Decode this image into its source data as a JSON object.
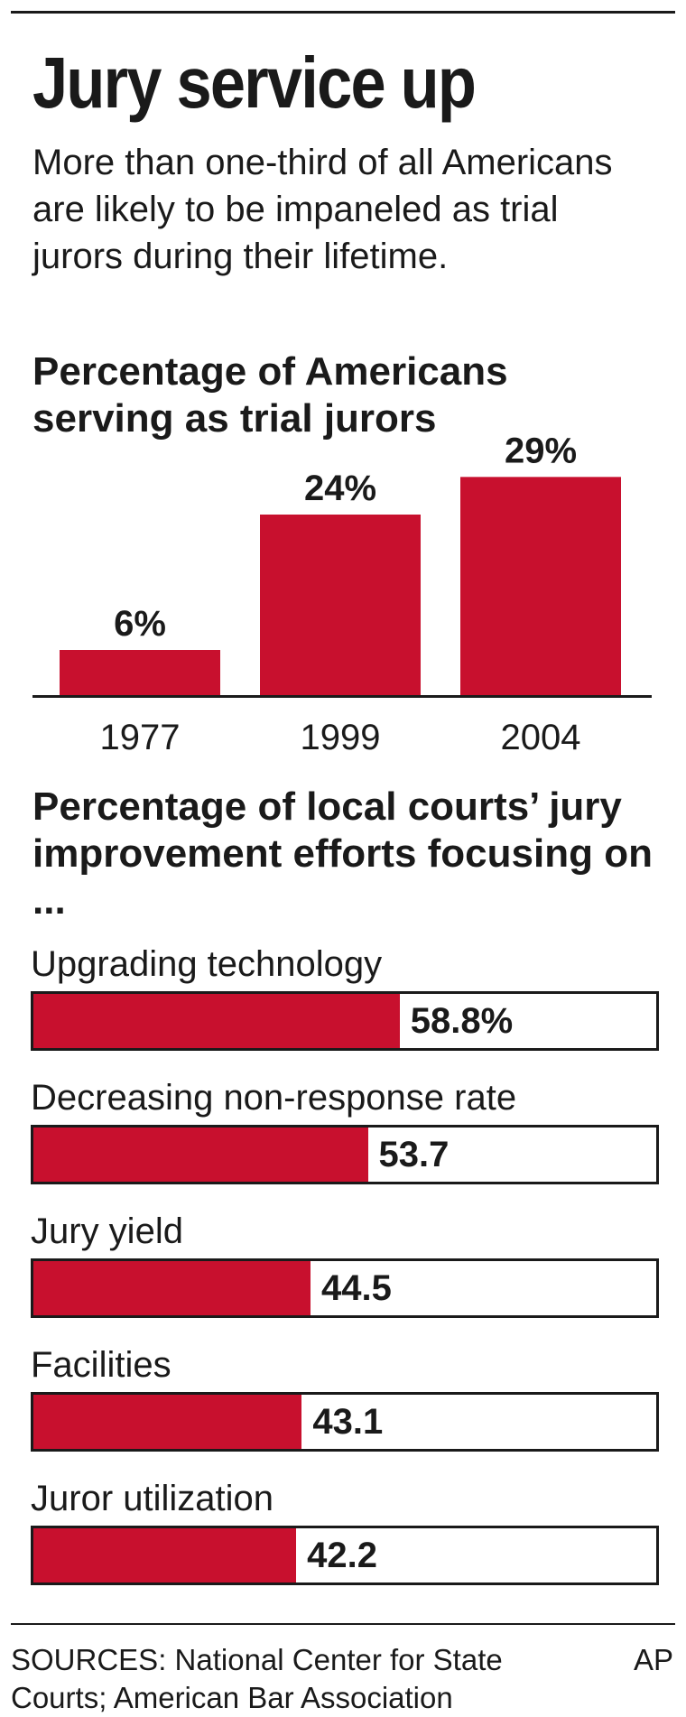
{
  "headline": "Jury service up",
  "subhead": "More than one-third of all Americans are likely to be impaneled as trial jurors during their lifetime.",
  "accent_color": "#c8102e",
  "chart_data": [
    {
      "type": "bar",
      "title": "Percentage of Americans serving as trial jurors",
      "categories": [
        "1977",
        "1999",
        "2004"
      ],
      "values": [
        6,
        24,
        29
      ],
      "value_labels": [
        "6%",
        "24%",
        "29%"
      ],
      "ylim": [
        0,
        30
      ],
      "grid": false
    },
    {
      "type": "bar",
      "orientation": "horizontal",
      "title": "Percentage of local courts’ jury improvement efforts focusing on ...",
      "categories": [
        "Upgrading technology",
        "Decreasing non-response rate",
        "Jury yield",
        "Facilities",
        "Juror utilization"
      ],
      "values": [
        58.8,
        53.7,
        44.5,
        43.1,
        42.2
      ],
      "value_labels": [
        "58.8%",
        "53.7",
        "44.5",
        "43.1",
        "42.2"
      ],
      "xlim": [
        0,
        100
      ],
      "grid": false
    }
  ],
  "source": "SOURCES: National Center for State Courts; American Bar Association",
  "credit": "AP"
}
